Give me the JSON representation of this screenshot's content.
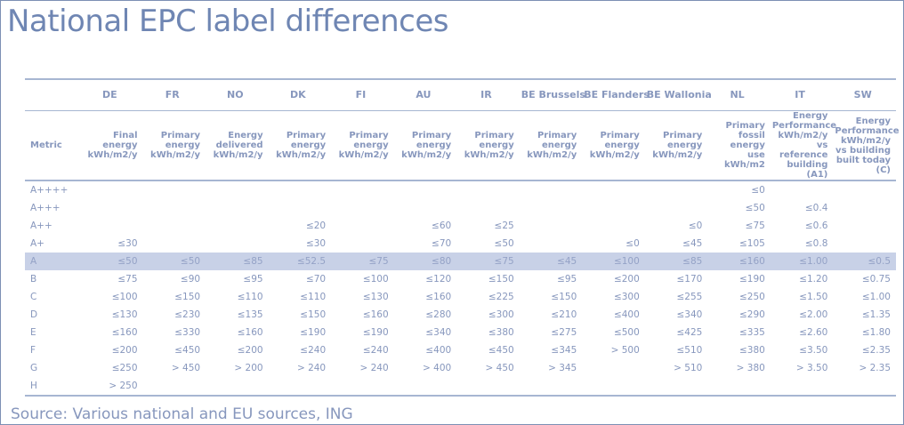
{
  "title": "National EPC label differences",
  "source": "Source: Various national and EU sources, ING",
  "table": {
    "row_header_label": "Metric",
    "columns": [
      {
        "code": "DE",
        "metric": "Final energy kWh/m2/y"
      },
      {
        "code": "FR",
        "metric": "Primary energy kWh/m2/y"
      },
      {
        "code": "NO",
        "metric": "Energy delivered kWh/m2/y"
      },
      {
        "code": "DK",
        "metric": "Primary energy kWh/m2/y"
      },
      {
        "code": "FI",
        "metric": "Primary energy kWh/m2/y"
      },
      {
        "code": "AU",
        "metric": "Primary energy kWh/m2/y"
      },
      {
        "code": "IR",
        "metric": "Primary energy kWh/m2/y"
      },
      {
        "code": "BE Brussels",
        "metric": "Primary energy kWh/m2/y"
      },
      {
        "code": "BE Flanders",
        "metric": "Primary energy kWh/m2/y"
      },
      {
        "code": "BE Wallonia",
        "metric": "Primary energy kWh/m2/y"
      },
      {
        "code": "NL",
        "metric": "Primary fossil energy use kWh/m2"
      },
      {
        "code": "IT",
        "metric": "Energy Performance kWh/m2/y vs reference building (A1)"
      },
      {
        "code": "SW",
        "metric": "Energy Performance kWh/m2/y vs building built today (C)"
      }
    ],
    "highlight_row": 4,
    "rows": [
      {
        "label": "A++++",
        "cells": [
          "",
          "",
          "",
          "",
          "",
          "",
          "",
          "",
          "",
          "",
          "≤0",
          "",
          ""
        ]
      },
      {
        "label": "A+++",
        "cells": [
          "",
          "",
          "",
          "",
          "",
          "",
          "",
          "",
          "",
          "",
          "≤50",
          "≤0.4",
          ""
        ]
      },
      {
        "label": "A++",
        "cells": [
          "",
          "",
          "",
          "≤20",
          "",
          "≤60",
          "≤25",
          "",
          "",
          "≤0",
          "≤75",
          "≤0.6",
          ""
        ]
      },
      {
        "label": "A+",
        "cells": [
          "≤30",
          "",
          "",
          "≤30",
          "",
          "≤70",
          "≤50",
          "",
          "≤0",
          "≤45",
          "≤105",
          "≤0.8",
          ""
        ]
      },
      {
        "label": "A",
        "cells": [
          "≤50",
          "≤50",
          "≤85",
          "≤52.5",
          "≤75",
          "≤80",
          "≤75",
          "≤45",
          "≤100",
          "≤85",
          "≤160",
          "≤1.00",
          "≤0.5"
        ]
      },
      {
        "label": "B",
        "cells": [
          "≤75",
          "≤90",
          "≤95",
          "≤70",
          "≤100",
          "≤120",
          "≤150",
          "≤95",
          "≤200",
          "≤170",
          "≤190",
          "≤1.20",
          "≤0.75"
        ]
      },
      {
        "label": "C",
        "cells": [
          "≤100",
          "≤150",
          "≤110",
          "≤110",
          "≤130",
          "≤160",
          "≤225",
          "≤150",
          "≤300",
          "≤255",
          "≤250",
          "≤1.50",
          "≤1.00"
        ]
      },
      {
        "label": "D",
        "cells": [
          "≤130",
          "≤230",
          "≤135",
          "≤150",
          "≤160",
          "≤280",
          "≤300",
          "≤210",
          "≤400",
          "≤340",
          "≤290",
          "≤2.00",
          "≤1.35"
        ]
      },
      {
        "label": "E",
        "cells": [
          "≤160",
          "≤330",
          "≤160",
          "≤190",
          "≤190",
          "≤340",
          "≤380",
          "≤275",
          "≤500",
          "≤425",
          "≤335",
          "≤2.60",
          "≤1.80"
        ]
      },
      {
        "label": "F",
        "cells": [
          "≤200",
          "≤450",
          "≤200",
          "≤240",
          "≤240",
          "≤400",
          "≤450",
          "≤345",
          "> 500",
          "≤510",
          "≤380",
          "≤3.50",
          "≤2.35"
        ]
      },
      {
        "label": "G",
        "cells": [
          "≤250",
          "> 450",
          "> 200",
          "> 240",
          "> 240",
          "> 400",
          "> 450",
          "> 345",
          "",
          "> 510",
          "> 380",
          "> 3.50",
          "> 2.35"
        ]
      },
      {
        "label": "H",
        "cells": [
          "> 250",
          "",
          "",
          "",
          "",
          "",
          "",
          "",
          "",
          "",
          "",
          "",
          ""
        ]
      }
    ]
  },
  "colors": {
    "text": "#8797bd",
    "title": "#6f86b3",
    "rule": "#a7b6d2",
    "highlight": "#c8d1e7"
  }
}
